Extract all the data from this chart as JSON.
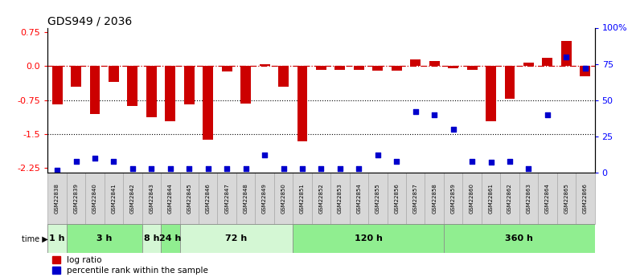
{
  "title": "GDS949 / 2036",
  "samples": [
    "GSM22838",
    "GSM22839",
    "GSM22840",
    "GSM22841",
    "GSM22842",
    "GSM22843",
    "GSM22844",
    "GSM22845",
    "GSM22846",
    "GSM22847",
    "GSM22848",
    "GSM22849",
    "GSM22850",
    "GSM22851",
    "GSM22852",
    "GSM22853",
    "GSM22854",
    "GSM22855",
    "GSM22856",
    "GSM22857",
    "GSM22858",
    "GSM22859",
    "GSM22860",
    "GSM22861",
    "GSM22862",
    "GSM22863",
    "GSM22864",
    "GSM22865",
    "GSM22866"
  ],
  "log_ratio": [
    -0.85,
    -0.45,
    -1.05,
    -0.35,
    -0.88,
    -1.12,
    -1.22,
    -0.85,
    -1.62,
    -0.12,
    -0.82,
    0.05,
    -0.45,
    -1.65,
    -0.08,
    -0.08,
    -0.08,
    -0.1,
    -0.1,
    0.15,
    0.12,
    -0.05,
    -0.08,
    -1.22,
    -0.72,
    0.08,
    0.18,
    0.55,
    -0.22
  ],
  "percentile_rank": [
    2,
    8,
    10,
    8,
    3,
    3,
    3,
    3,
    3,
    3,
    3,
    12,
    3,
    3,
    3,
    3,
    3,
    12,
    8,
    42,
    40,
    30,
    8,
    7,
    8,
    3,
    40,
    80,
    72
  ],
  "time_groups": [
    {
      "label": "1 h",
      "start": 0,
      "end": 1,
      "color": "#d4f7d4"
    },
    {
      "label": "3 h",
      "start": 1,
      "end": 5,
      "color": "#90ee90"
    },
    {
      "label": "8 h",
      "start": 5,
      "end": 6,
      "color": "#d4f7d4"
    },
    {
      "label": "24 h",
      "start": 6,
      "end": 7,
      "color": "#90ee90"
    },
    {
      "label": "72 h",
      "start": 7,
      "end": 13,
      "color": "#d4f7d4"
    },
    {
      "label": "120 h",
      "start": 13,
      "end": 21,
      "color": "#90ee90"
    },
    {
      "label": "360 h",
      "start": 21,
      "end": 29,
      "color": "#90ee90"
    }
  ],
  "bar_color": "#cc0000",
  "dot_color": "#0000cc",
  "ylim_left": [
    -2.35,
    0.85
  ],
  "ylim_right": [
    0,
    100
  ],
  "yticks_left": [
    0.75,
    0.0,
    -0.75,
    -1.5,
    -2.25
  ],
  "yticks_right_vals": [
    100,
    75,
    50,
    25,
    0
  ],
  "yticks_right_labels": [
    "100%",
    "75",
    "50",
    "25",
    "0"
  ],
  "background_color": "#ffffff",
  "gsm_cell_color": "#d8d8d8",
  "gsm_cell_edge": "#aaaaaa"
}
